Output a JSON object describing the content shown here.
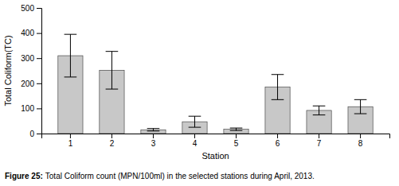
{
  "chart_data": {
    "type": "bar",
    "xlabel": "Station",
    "ylabel": "Total Coliform(TC)",
    "annotations": [
      "Figure 25:",
      "Total Coliform count (MPN/100ml) in the selected stations during April, 2013."
    ],
    "categories": [
      "1",
      "2",
      "3",
      "4",
      "5",
      "6",
      "7",
      "8"
    ],
    "values": [
      310,
      252,
      15,
      47,
      17,
      185,
      92,
      107
    ],
    "errors": [
      85,
      75,
      5,
      22,
      5,
      50,
      18,
      28
    ],
    "color": "#c8c8c8",
    "ylim": [
      0,
      500
    ],
    "yticks": [
      0,
      100,
      200,
      300,
      400,
      500
    ],
    "grid": false
  }
}
